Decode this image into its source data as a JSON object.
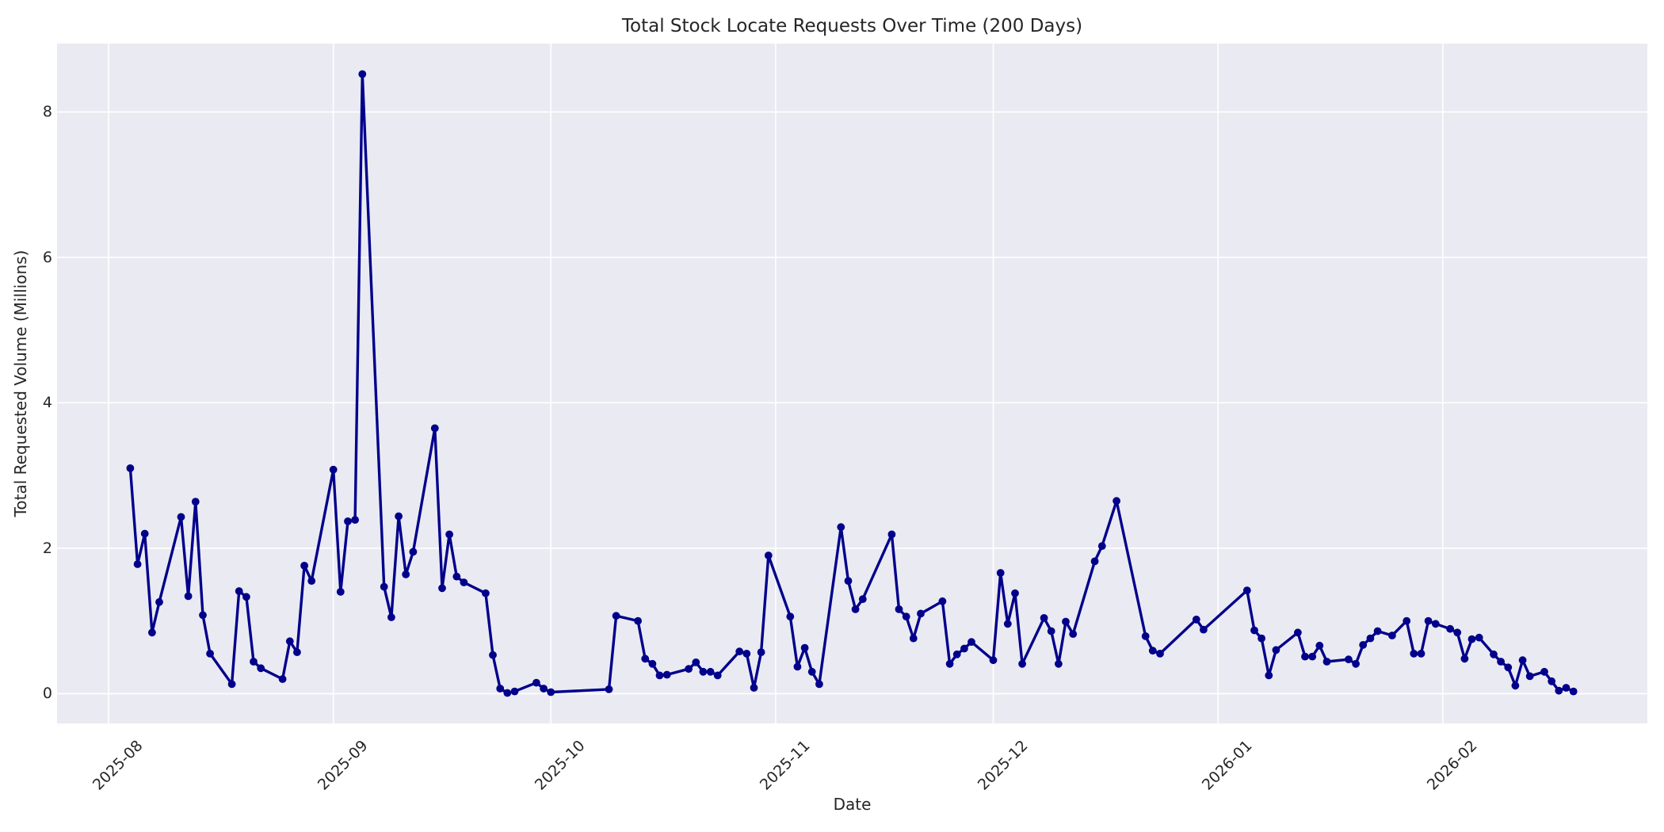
{
  "chart_data": {
    "type": "line",
    "title": "Total Stock Locate Requests Over Time (200 Days)",
    "xlabel": "Date",
    "ylabel": "Total Requested Volume (Millions)",
    "grid": true,
    "legend": false,
    "line_color": "#00008b",
    "marker": "circle",
    "plot_bg_color": "#eaeaf2",
    "grid_color": "#ffffff",
    "text_color": "#262626",
    "ylim": [
      -0.41,
      8.94
    ],
    "xlim_days_from_2025_08_01": [
      -7.1,
      212.2
    ],
    "yticks": [
      0,
      2,
      4,
      6,
      8
    ],
    "xticks": [
      {
        "date": "2025-08-01",
        "label": "2025-08"
      },
      {
        "date": "2025-09-01",
        "label": "2025-09"
      },
      {
        "date": "2025-10-01",
        "label": "2025-10"
      },
      {
        "date": "2025-11-01",
        "label": "2025-11"
      },
      {
        "date": "2025-12-01",
        "label": "2025-12"
      },
      {
        "date": "2026-01-01",
        "label": "2026-01"
      },
      {
        "date": "2026-02-01",
        "label": "2026-02"
      }
    ],
    "series": [
      {
        "name": "Total Requested Volume (Millions)",
        "points": [
          [
            "2025-08-04",
            3.1
          ],
          [
            "2025-08-05",
            1.78
          ],
          [
            "2025-08-06",
            2.2
          ],
          [
            "2025-08-07",
            0.84
          ],
          [
            "2025-08-08",
            1.26
          ],
          [
            "2025-08-11",
            2.43
          ],
          [
            "2025-08-12",
            1.34
          ],
          [
            "2025-08-13",
            2.64
          ],
          [
            "2025-08-14",
            1.08
          ],
          [
            "2025-08-15",
            0.55
          ],
          [
            "2025-08-18",
            0.13
          ],
          [
            "2025-08-19",
            1.41
          ],
          [
            "2025-08-20",
            1.33
          ],
          [
            "2025-08-21",
            0.44
          ],
          [
            "2025-08-22",
            0.35
          ],
          [
            "2025-08-25",
            0.2
          ],
          [
            "2025-08-26",
            0.72
          ],
          [
            "2025-08-27",
            0.57
          ],
          [
            "2025-08-28",
            1.76
          ],
          [
            "2025-08-29",
            1.55
          ],
          [
            "2025-09-01",
            3.08
          ],
          [
            "2025-09-02",
            1.4
          ],
          [
            "2025-09-03",
            2.37
          ],
          [
            "2025-09-04",
            2.39
          ],
          [
            "2025-09-05",
            8.52
          ],
          [
            "2025-09-08",
            1.47
          ],
          [
            "2025-09-09",
            1.05
          ],
          [
            "2025-09-10",
            2.44
          ],
          [
            "2025-09-11",
            1.64
          ],
          [
            "2025-09-12",
            1.95
          ],
          [
            "2025-09-15",
            3.65
          ],
          [
            "2025-09-16",
            1.45
          ],
          [
            "2025-09-17",
            2.19
          ],
          [
            "2025-09-18",
            1.61
          ],
          [
            "2025-09-19",
            1.53
          ],
          [
            "2025-09-22",
            1.38
          ],
          [
            "2025-09-23",
            0.53
          ],
          [
            "2025-09-24",
            0.07
          ],
          [
            "2025-09-25",
            0.01
          ],
          [
            "2025-09-26",
            0.03
          ],
          [
            "2025-09-29",
            0.15
          ],
          [
            "2025-09-30",
            0.07
          ],
          [
            "2025-10-01",
            0.02
          ],
          [
            "2025-10-09",
            0.06
          ],
          [
            "2025-10-10",
            1.07
          ],
          [
            "2025-10-13",
            1.0
          ],
          [
            "2025-10-14",
            0.48
          ],
          [
            "2025-10-15",
            0.41
          ],
          [
            "2025-10-16",
            0.25
          ],
          [
            "2025-10-17",
            0.26
          ],
          [
            "2025-10-20",
            0.34
          ],
          [
            "2025-10-21",
            0.43
          ],
          [
            "2025-10-22",
            0.3
          ],
          [
            "2025-10-23",
            0.3
          ],
          [
            "2025-10-24",
            0.25
          ],
          [
            "2025-10-27",
            0.58
          ],
          [
            "2025-10-28",
            0.55
          ],
          [
            "2025-10-29",
            0.08
          ],
          [
            "2025-10-30",
            0.57
          ],
          [
            "2025-10-31",
            1.9
          ],
          [
            "2025-11-03",
            1.06
          ],
          [
            "2025-11-04",
            0.37
          ],
          [
            "2025-11-05",
            0.63
          ],
          [
            "2025-11-06",
            0.3
          ],
          [
            "2025-11-07",
            0.13
          ],
          [
            "2025-11-10",
            2.29
          ],
          [
            "2025-11-11",
            1.55
          ],
          [
            "2025-11-12",
            1.16
          ],
          [
            "2025-11-13",
            1.3
          ],
          [
            "2025-11-17",
            2.19
          ],
          [
            "2025-11-18",
            1.16
          ],
          [
            "2025-11-19",
            1.06
          ],
          [
            "2025-11-20",
            0.76
          ],
          [
            "2025-11-21",
            1.1
          ],
          [
            "2025-11-24",
            1.27
          ],
          [
            "2025-11-25",
            0.41
          ],
          [
            "2025-11-26",
            0.54
          ],
          [
            "2025-11-27",
            0.62
          ],
          [
            "2025-11-28",
            0.71
          ],
          [
            "2025-12-01",
            0.46
          ],
          [
            "2025-12-02",
            1.66
          ],
          [
            "2025-12-03",
            0.96
          ],
          [
            "2025-12-04",
            1.38
          ],
          [
            "2025-12-05",
            0.41
          ],
          [
            "2025-12-08",
            1.04
          ],
          [
            "2025-12-09",
            0.86
          ],
          [
            "2025-12-10",
            0.41
          ],
          [
            "2025-12-11",
            0.99
          ],
          [
            "2025-12-12",
            0.82
          ],
          [
            "2025-12-15",
            1.82
          ],
          [
            "2025-12-16",
            2.03
          ],
          [
            "2025-12-18",
            2.65
          ],
          [
            "2025-12-22",
            0.79
          ],
          [
            "2025-12-23",
            0.59
          ],
          [
            "2025-12-24",
            0.55
          ],
          [
            "2025-12-29",
            1.02
          ],
          [
            "2025-12-30",
            0.88
          ],
          [
            "2026-01-05",
            1.42
          ],
          [
            "2026-01-06",
            0.87
          ],
          [
            "2026-01-07",
            0.76
          ],
          [
            "2026-01-08",
            0.25
          ],
          [
            "2026-01-09",
            0.6
          ],
          [
            "2026-01-12",
            0.84
          ],
          [
            "2026-01-13",
            0.51
          ],
          [
            "2026-01-14",
            0.51
          ],
          [
            "2026-01-15",
            0.66
          ],
          [
            "2026-01-16",
            0.44
          ],
          [
            "2026-01-19",
            0.47
          ],
          [
            "2026-01-20",
            0.41
          ],
          [
            "2026-01-21",
            0.67
          ],
          [
            "2026-01-22",
            0.76
          ],
          [
            "2026-01-23",
            0.86
          ],
          [
            "2026-01-25",
            0.8
          ],
          [
            "2026-01-27",
            1.0
          ],
          [
            "2026-01-28",
            0.55
          ],
          [
            "2026-01-29",
            0.55
          ],
          [
            "2026-01-30",
            1.0
          ],
          [
            "2026-01-31",
            0.96
          ],
          [
            "2026-02-02",
            0.89
          ],
          [
            "2026-02-03",
            0.84
          ],
          [
            "2026-02-04",
            0.48
          ],
          [
            "2026-02-05",
            0.75
          ],
          [
            "2026-02-06",
            0.77
          ],
          [
            "2026-02-08",
            0.54
          ],
          [
            "2026-02-09",
            0.44
          ],
          [
            "2026-02-10",
            0.36
          ],
          [
            "2026-02-11",
            0.11
          ],
          [
            "2026-02-12",
            0.46
          ],
          [
            "2026-02-13",
            0.24
          ],
          [
            "2026-02-15",
            0.3
          ],
          [
            "2026-02-16",
            0.17
          ],
          [
            "2026-02-17",
            0.04
          ],
          [
            "2026-02-18",
            0.08
          ],
          [
            "2026-02-19",
            0.03
          ]
        ]
      }
    ]
  }
}
